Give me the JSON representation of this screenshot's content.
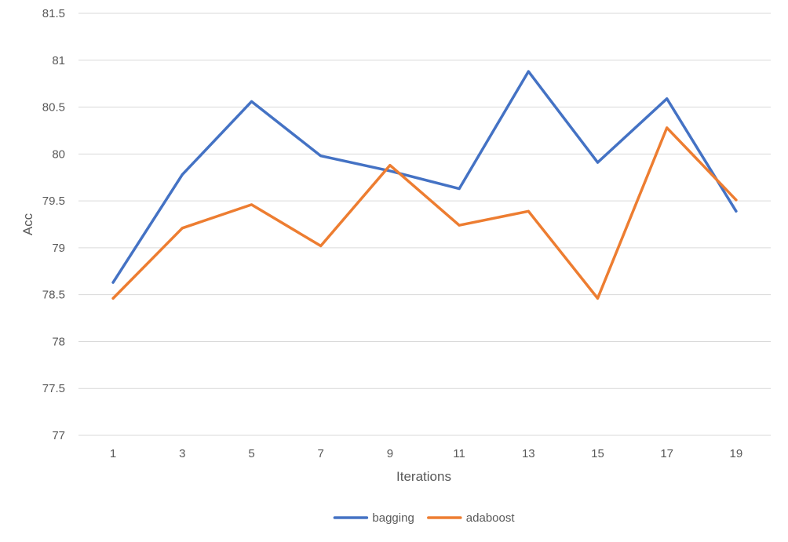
{
  "chart_data": {
    "type": "line",
    "title": "",
    "xlabel": "Iterations",
    "ylabel": "Acc",
    "categories": [
      "1",
      "3",
      "5",
      "7",
      "9",
      "11",
      "13",
      "15",
      "17",
      "19"
    ],
    "ylim": [
      77,
      81.5
    ],
    "yticks": [
      "77",
      "77.5",
      "78",
      "78.5",
      "79",
      "79.5",
      "80",
      "80.5",
      "81",
      "81.5"
    ],
    "grid": true,
    "legend_position": "bottom",
    "series": [
      {
        "name": "bagging",
        "color": "#4472C4",
        "values": [
          78.63,
          79.78,
          80.56,
          79.98,
          79.82,
          79.63,
          80.88,
          79.91,
          80.59,
          79.39
        ]
      },
      {
        "name": "adaboost",
        "color": "#ED7D31",
        "values": [
          78.46,
          79.21,
          79.46,
          79.02,
          79.88,
          79.24,
          79.39,
          78.46,
          80.28,
          79.51
        ]
      }
    ]
  }
}
